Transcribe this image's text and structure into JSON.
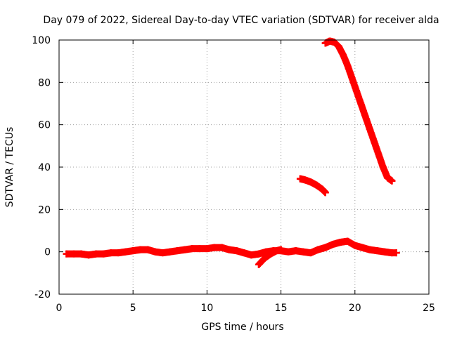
{
  "chart_data": {
    "type": "scatter",
    "title": "Day 079 of 2022, Sidereal Day-to-day VTEC variation (SDTVAR) for receiver alda",
    "xlabel": "GPS time / hours",
    "ylabel": "SDTVAR / TECUs",
    "xlim": [
      0,
      25
    ],
    "ylim": [
      -20,
      100
    ],
    "xticks": [
      0,
      5,
      10,
      15,
      20,
      25
    ],
    "yticks": [
      -20,
      0,
      20,
      40,
      60,
      80,
      100
    ],
    "grid": true,
    "marker": "plus",
    "series": [
      {
        "name": "main",
        "color": "#ff0000",
        "x": [
          0.5,
          1.0,
          1.5,
          2.0,
          2.5,
          3.0,
          3.5,
          4.0,
          4.5,
          5.0,
          5.5,
          6.0,
          6.5,
          7.0,
          7.5,
          8.0,
          8.5,
          9.0,
          9.5,
          10.0,
          10.5,
          11.0,
          11.5,
          12.0,
          12.5,
          13.0,
          13.5,
          14.0,
          14.5,
          15.0,
          15.5,
          16.0,
          16.5,
          17.0,
          17.5,
          18.0,
          18.5,
          19.0,
          19.5,
          20.0,
          20.5,
          21.0,
          21.5,
          22.0,
          22.5,
          22.8
        ],
        "y": [
          -1,
          -1,
          -1,
          -1.5,
          -1,
          -1,
          -0.5,
          -0.5,
          0,
          0.5,
          1,
          1,
          0,
          -0.5,
          0,
          0.5,
          1,
          1.5,
          1.5,
          1.5,
          2,
          2,
          1,
          0.5,
          -0.5,
          -1.5,
          -1,
          0,
          0.5,
          0.5,
          0,
          0.5,
          0,
          -0.5,
          1,
          2,
          3.5,
          4.5,
          5,
          3,
          2,
          1,
          0.5,
          0,
          -0.5,
          -0.5
        ]
      },
      {
        "name": "dip",
        "color": "#ff0000",
        "x": [
          13.5,
          13.9,
          14.3,
          14.7,
          15.0
        ],
        "y": [
          -6,
          -3,
          -1,
          0.5,
          1
        ]
      },
      {
        "name": "mid-arc",
        "color": "#ff0000",
        "x": [
          16.3,
          16.6,
          17.0,
          17.4,
          17.8,
          18.0
        ],
        "y": [
          34.5,
          34,
          33,
          31.5,
          29.5,
          28
        ]
      },
      {
        "name": "upper-arc",
        "color": "#ff0000",
        "x": [
          18.0,
          18.3,
          18.6,
          18.9,
          19.2,
          19.5,
          19.8,
          20.1,
          20.4,
          20.7,
          21.0,
          21.3,
          21.6,
          21.9,
          22.2,
          22.5
        ],
        "y": [
          98.5,
          99.5,
          99,
          97,
          93,
          88,
          82,
          76,
          70,
          64,
          58,
          52,
          46,
          40,
          35,
          33.5
        ]
      }
    ]
  }
}
